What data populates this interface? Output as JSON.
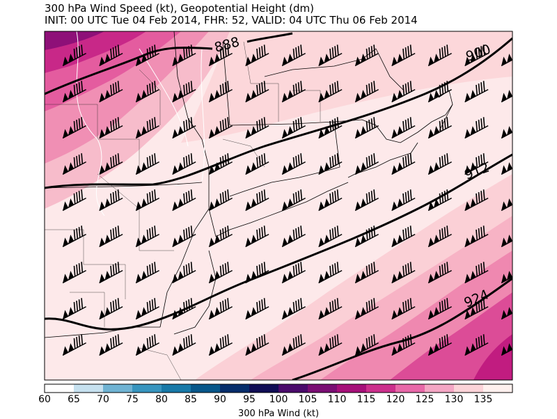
{
  "title": {
    "line1": "300 hPa Wind Speed (kt), Geopotential Height (dm)",
    "line2": "INIT: 00 UTC Tue 04 Feb 2014, FHR: 52, VALID: 04 UTC Thu 06 Feb 2014"
  },
  "map": {
    "contour_labels": [
      "888",
      "900",
      "912",
      "924"
    ],
    "barb_symbol": "wind-barb-icon"
  },
  "colorbar": {
    "label": "300 hPa Wind (kt)",
    "ticks": [
      "60",
      "65",
      "70",
      "75",
      "80",
      "85",
      "90",
      "95",
      "100",
      "105",
      "110",
      "115",
      "120",
      "125",
      "130",
      "135"
    ],
    "colors": [
      "#ffffff",
      "#c6e1ef",
      "#6fb3d3",
      "#3795bf",
      "#1779a8",
      "#06578a",
      "#052d6b",
      "#100d55",
      "#4a0a6b",
      "#7a0d73",
      "#a60f79",
      "#cc2f8c",
      "#e868a8",
      "#f4a6c4",
      "#fcd3d8",
      "#fff0ee"
    ]
  }
}
